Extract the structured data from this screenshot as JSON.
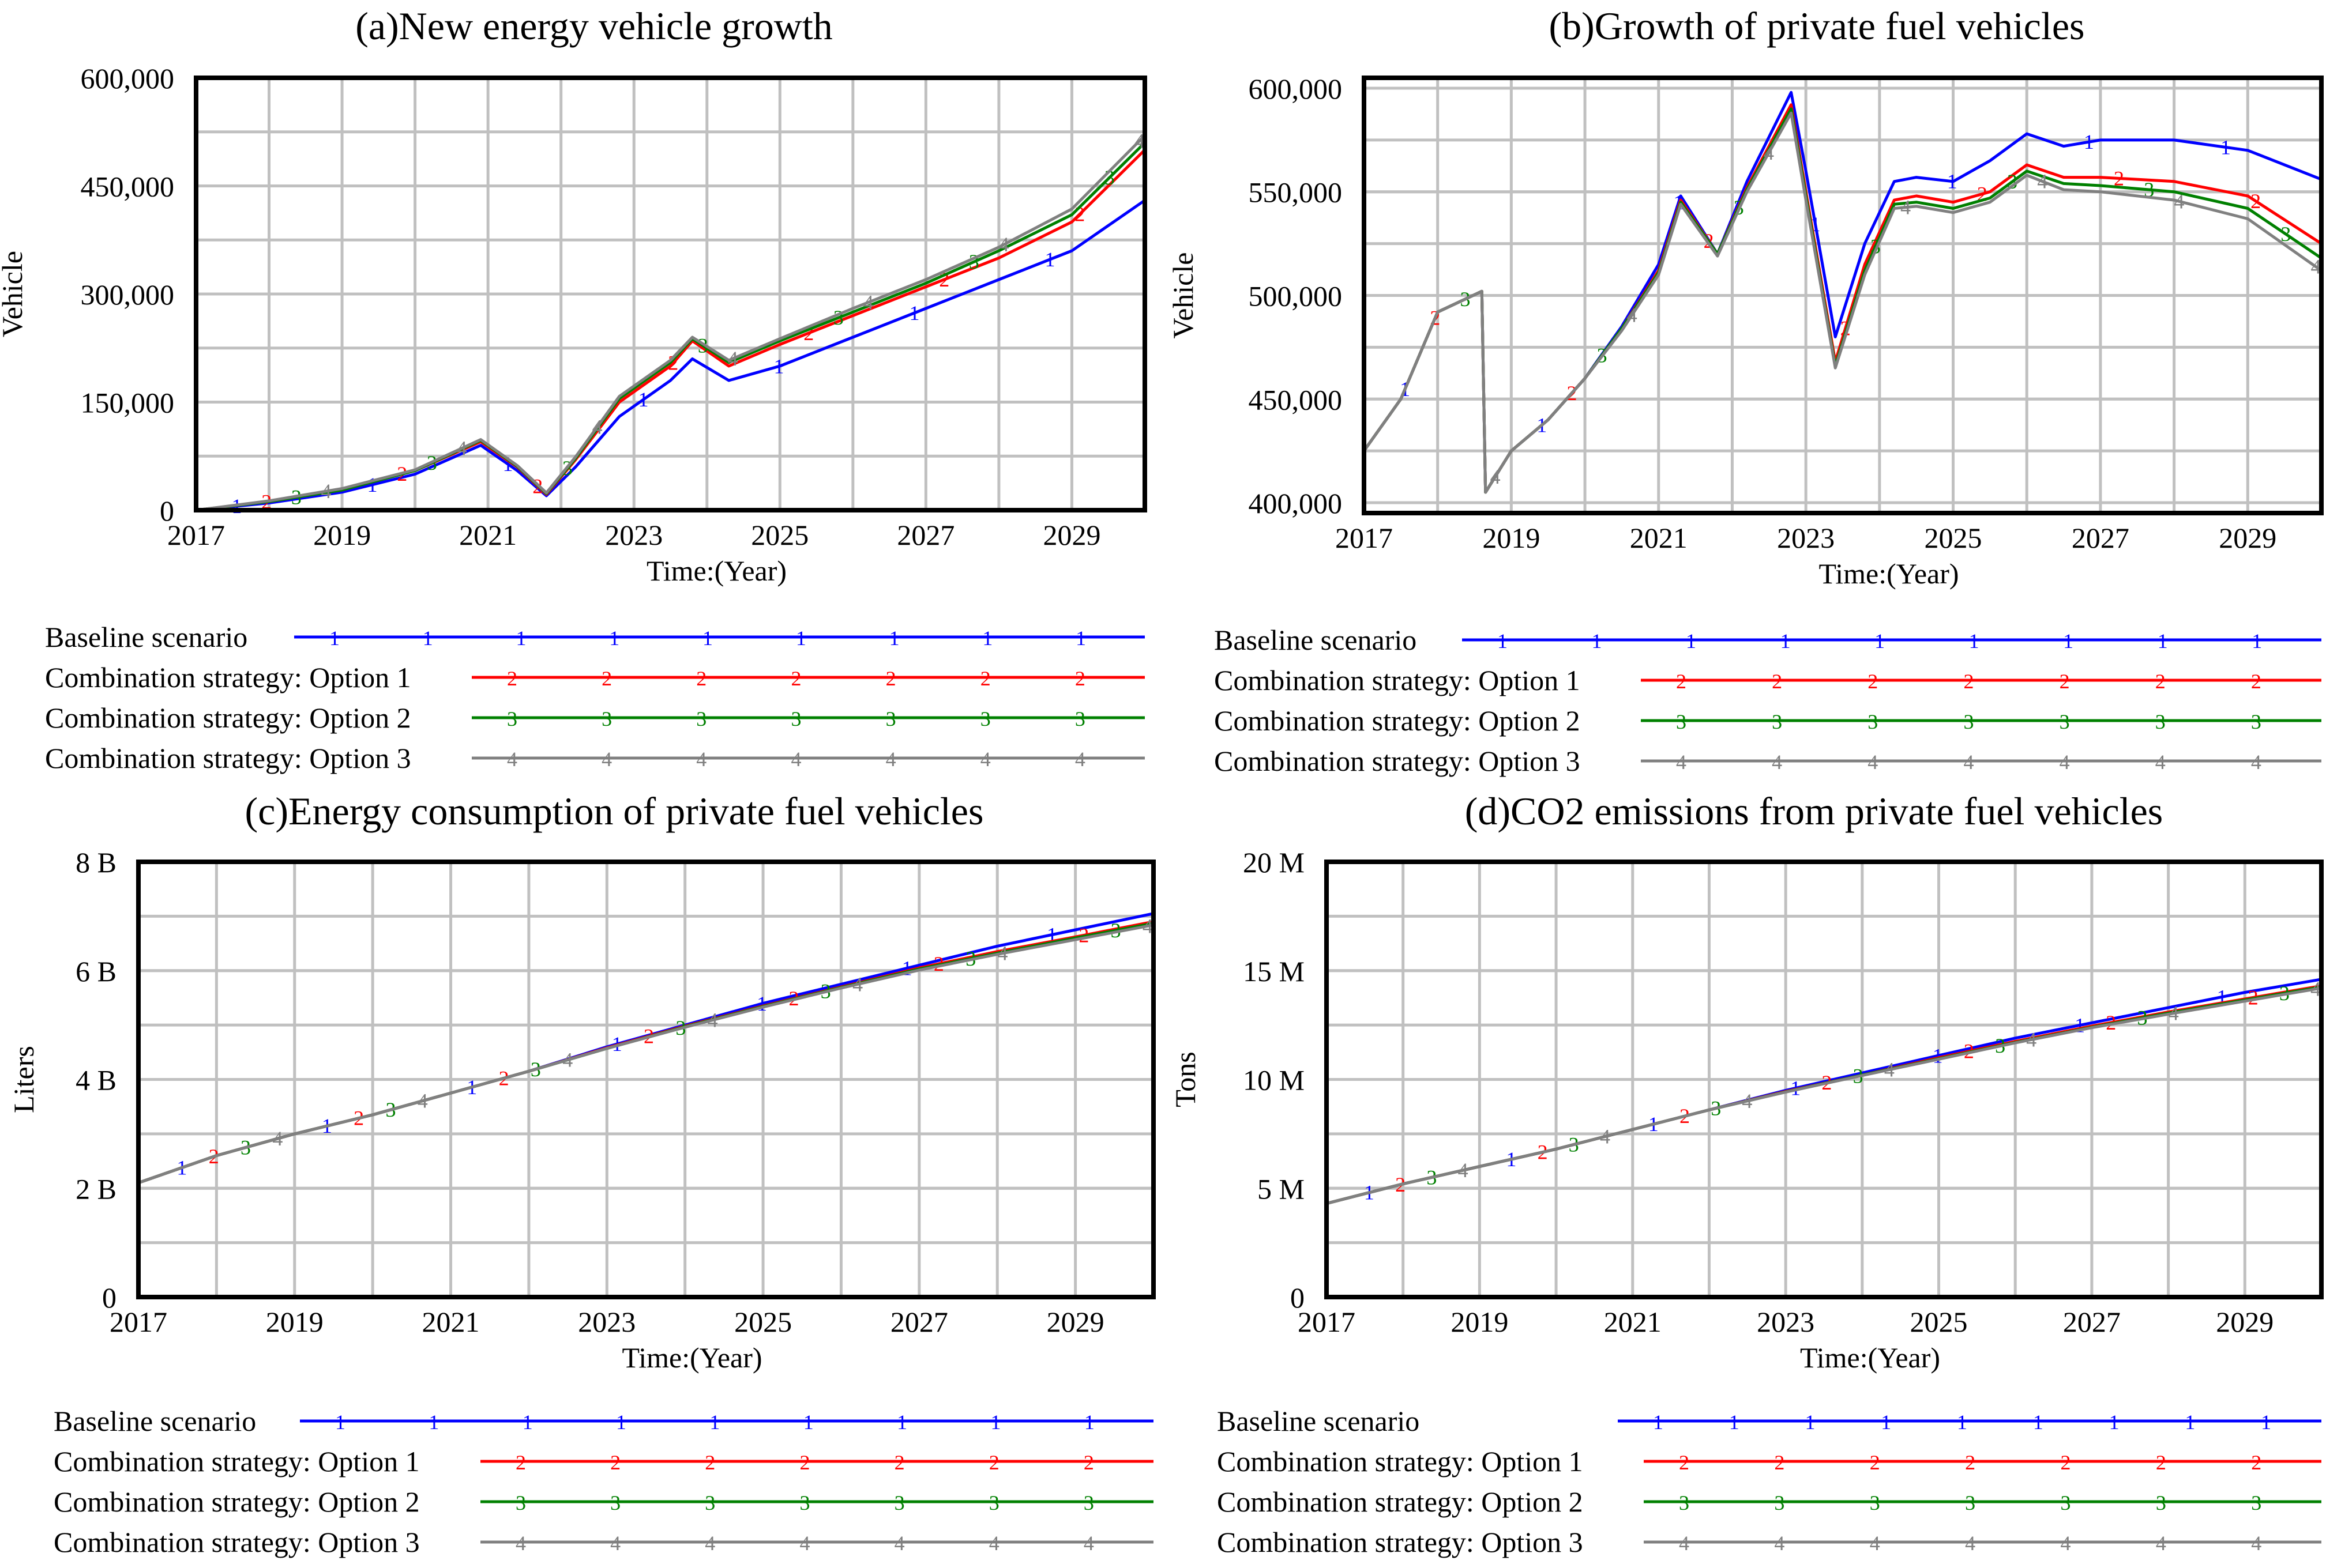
{
  "series_meta": [
    {
      "name": "Baseline scenario",
      "marker": "1",
      "color": "#0000ff"
    },
    {
      "name": "Combination strategy: Option 1",
      "marker": "2",
      "color": "#ff0000"
    },
    {
      "name": "Combination strategy: Option 2",
      "marker": "3",
      "color": "#008000"
    },
    {
      "name": "Combination strategy: Option 3",
      "marker": "4",
      "color": "#808080"
    }
  ],
  "chart_data": [
    {
      "type": "line",
      "title": "(a)New energy vehicle growth",
      "xlabel": "Time:(Year)",
      "ylabel": "Vehicle",
      "xlim": [
        2017,
        2030
      ],
      "ylim": [
        0,
        600000
      ],
      "xticks": [
        2017,
        2019,
        2021,
        2023,
        2025,
        2027,
        2029
      ],
      "yticks": [
        {
          "v": 0,
          "label": "0"
        },
        {
          "v": 150000,
          "label": "150,000"
        },
        {
          "v": 300000,
          "label": "300,000"
        },
        {
          "v": 450000,
          "label": "450,000"
        },
        {
          "v": 600000,
          "label": "600,000"
        }
      ],
      "series": [
        {
          "name": "Baseline scenario",
          "x": [
            2017,
            2018,
            2019,
            2020,
            2020.9,
            2021.4,
            2021.8,
            2022.2,
            2022.8,
            2023.5,
            2023.8,
            2024.3,
            2025,
            2026,
            2027,
            2028,
            2029,
            2030
          ],
          "values": [
            0,
            10000,
            25000,
            50000,
            90000,
            55000,
            20000,
            60000,
            130000,
            180000,
            210000,
            180000,
            200000,
            240000,
            280000,
            320000,
            360000,
            430000
          ]
        },
        {
          "name": "Combination strategy: Option 1",
          "x": [
            2017,
            2018,
            2019,
            2020,
            2020.9,
            2021.4,
            2021.8,
            2022.2,
            2022.8,
            2023.5,
            2023.8,
            2024.3,
            2025,
            2026,
            2027,
            2028,
            2029,
            2030
          ],
          "values": [
            0,
            12000,
            28000,
            55000,
            95000,
            60000,
            22000,
            70000,
            150000,
            200000,
            235000,
            200000,
            230000,
            270000,
            310000,
            350000,
            400000,
            500000
          ]
        },
        {
          "name": "Combination strategy: Option 2",
          "x": [
            2017,
            2018,
            2019,
            2020,
            2020.9,
            2021.4,
            2021.8,
            2022.2,
            2022.8,
            2023.5,
            2023.8,
            2024.3,
            2025,
            2026,
            2027,
            2028,
            2029,
            2030
          ],
          "values": [
            0,
            12000,
            28000,
            55000,
            97000,
            61000,
            23000,
            72000,
            155000,
            205000,
            238000,
            205000,
            235000,
            275000,
            315000,
            360000,
            410000,
            510000
          ]
        },
        {
          "name": "Combination strategy: Option 3",
          "x": [
            2017,
            2018,
            2019,
            2020,
            2020.9,
            2021.4,
            2021.8,
            2022.2,
            2022.8,
            2023.5,
            2023.8,
            2024.3,
            2025,
            2026,
            2027,
            2028,
            2029,
            2030
          ],
          "values": [
            0,
            13000,
            30000,
            56000,
            98000,
            62000,
            24000,
            74000,
            158000,
            208000,
            240000,
            208000,
            238000,
            280000,
            320000,
            365000,
            418000,
            520000
          ]
        }
      ]
    },
    {
      "type": "line",
      "title": "(b)Growth of private fuel vehicles",
      "xlabel": "Time:(Year)",
      "ylabel": "Vehicle",
      "xlim": [
        2017,
        2030
      ],
      "ylim": [
        395000,
        605000
      ],
      "xticks": [
        2017,
        2019,
        2021,
        2023,
        2025,
        2027,
        2029
      ],
      "yticks": [
        {
          "v": 400000,
          "label": "400,000"
        },
        {
          "v": 450000,
          "label": "450,000"
        },
        {
          "v": 500000,
          "label": "500,000"
        },
        {
          "v": 550000,
          "label": "550,000"
        },
        {
          "v": 600000,
          "label": "600,000"
        }
      ],
      "series": [
        {
          "name": "Baseline scenario",
          "x": [
            2017,
            2017.5,
            2018,
            2018.6,
            2018.65,
            2019,
            2019.5,
            2020,
            2020.5,
            2021,
            2021.3,
            2021.8,
            2022.2,
            2022.8,
            2023,
            2023.4,
            2023.8,
            2024.2,
            2024.5,
            2025,
            2025.5,
            2026,
            2026.5,
            2027,
            2028,
            2029,
            2030
          ],
          "values": [
            425000,
            450000,
            492000,
            502000,
            405000,
            425000,
            440000,
            460000,
            485000,
            515000,
            548000,
            520000,
            555000,
            598000,
            560000,
            480000,
            525000,
            555000,
            557000,
            555000,
            565000,
            578000,
            572000,
            575000,
            575000,
            570000,
            556000
          ]
        },
        {
          "name": "Combination strategy: Option 1",
          "x": [
            2017,
            2017.5,
            2018,
            2018.6,
            2018.65,
            2019,
            2019.5,
            2020,
            2020.5,
            2021,
            2021.3,
            2021.8,
            2022.2,
            2022.8,
            2023,
            2023.4,
            2023.8,
            2024.2,
            2024.5,
            2025,
            2025.5,
            2026,
            2026.5,
            2027,
            2028,
            2029,
            2030
          ],
          "values": [
            425000,
            450000,
            492000,
            502000,
            405000,
            425000,
            440000,
            460000,
            484000,
            512000,
            546000,
            520000,
            552000,
            592000,
            550000,
            468000,
            515000,
            546000,
            548000,
            545000,
            550000,
            563000,
            557000,
            557000,
            555000,
            548000,
            525000
          ]
        },
        {
          "name": "Combination strategy: Option 2",
          "x": [
            2017,
            2017.5,
            2018,
            2018.6,
            2018.65,
            2019,
            2019.5,
            2020,
            2020.5,
            2021,
            2021.3,
            2021.8,
            2022.2,
            2022.8,
            2023,
            2023.4,
            2023.8,
            2024.2,
            2024.5,
            2025,
            2025.5,
            2026,
            2026.5,
            2027,
            2028,
            2029,
            2030
          ],
          "values": [
            425000,
            450000,
            492000,
            502000,
            405000,
            425000,
            440000,
            460000,
            484000,
            511000,
            545000,
            520000,
            551000,
            590000,
            548000,
            466000,
            512000,
            544000,
            545000,
            542000,
            547000,
            560000,
            554000,
            553000,
            550000,
            542000,
            518000
          ]
        },
        {
          "name": "Combination strategy: Option 3",
          "x": [
            2017,
            2017.5,
            2018,
            2018.6,
            2018.65,
            2019,
            2019.5,
            2020,
            2020.5,
            2021,
            2021.3,
            2021.8,
            2022.2,
            2022.8,
            2023,
            2023.4,
            2023.8,
            2024.2,
            2024.5,
            2025,
            2025.5,
            2026,
            2026.5,
            2027,
            2028,
            2029,
            2030
          ],
          "values": [
            425000,
            450000,
            492000,
            502000,
            405000,
            425000,
            440000,
            460000,
            483000,
            510000,
            544000,
            519000,
            550000,
            588000,
            546000,
            465000,
            510000,
            542000,
            543000,
            540000,
            545000,
            558000,
            551000,
            550000,
            546000,
            537000,
            512000
          ]
        }
      ]
    },
    {
      "type": "line",
      "title": "(c)Energy consumption of private fuel vehicles",
      "xlabel": "Time:(Year)",
      "ylabel": "Liters",
      "xlim": [
        2017,
        2030
      ],
      "ylim": [
        0,
        8
      ],
      "xticks": [
        2017,
        2019,
        2021,
        2023,
        2025,
        2027,
        2029
      ],
      "yticks": [
        {
          "v": 0,
          "label": "0"
        },
        {
          "v": 2,
          "label": "2 B"
        },
        {
          "v": 4,
          "label": "4 B"
        },
        {
          "v": 6,
          "label": "6 B"
        },
        {
          "v": 8,
          "label": "8 B"
        }
      ],
      "series": [
        {
          "name": "Baseline scenario",
          "x": [
            2017,
            2018,
            2019,
            2020,
            2021,
            2022,
            2023,
            2024,
            2025,
            2026,
            2027,
            2028,
            2029,
            2030
          ],
          "values": [
            2.1,
            2.6,
            3.0,
            3.35,
            3.75,
            4.15,
            4.6,
            5.0,
            5.4,
            5.75,
            6.1,
            6.45,
            6.75,
            7.05
          ]
        },
        {
          "name": "Combination strategy: Option 1",
          "x": [
            2017,
            2018,
            2019,
            2020,
            2021,
            2022,
            2023,
            2024,
            2025,
            2026,
            2027,
            2028,
            2029,
            2030
          ],
          "values": [
            2.1,
            2.6,
            3.0,
            3.35,
            3.75,
            4.15,
            4.58,
            4.98,
            5.35,
            5.7,
            6.05,
            6.35,
            6.62,
            6.9
          ]
        },
        {
          "name": "Combination strategy: Option 2",
          "x": [
            2017,
            2018,
            2019,
            2020,
            2021,
            2022,
            2023,
            2024,
            2025,
            2026,
            2027,
            2028,
            2029,
            2030
          ],
          "values": [
            2.1,
            2.6,
            3.0,
            3.35,
            3.75,
            4.15,
            4.57,
            4.97,
            5.34,
            5.69,
            6.03,
            6.32,
            6.6,
            6.87
          ]
        },
        {
          "name": "Combination strategy: Option 3",
          "x": [
            2017,
            2018,
            2019,
            2020,
            2021,
            2022,
            2023,
            2024,
            2025,
            2026,
            2027,
            2028,
            2029,
            2030
          ],
          "values": [
            2.1,
            2.6,
            3.0,
            3.35,
            3.75,
            4.15,
            4.57,
            4.96,
            5.33,
            5.68,
            6.01,
            6.3,
            6.57,
            6.84
          ]
        }
      ]
    },
    {
      "type": "line",
      "title": "(d)CO2 emissions from private fuel vehicles",
      "xlabel": "Time:(Year)",
      "ylabel": "Tons",
      "xlim": [
        2017,
        2030
      ],
      "ylim": [
        0,
        20
      ],
      "xticks": [
        2017,
        2019,
        2021,
        2023,
        2025,
        2027,
        2029
      ],
      "yticks": [
        {
          "v": 0,
          "label": "0"
        },
        {
          "v": 5,
          "label": "5 M"
        },
        {
          "v": 10,
          "label": "10 M"
        },
        {
          "v": 15,
          "label": "15 M"
        },
        {
          "v": 20,
          "label": "20 M"
        }
      ],
      "series": [
        {
          "name": "Baseline scenario",
          "x": [
            2017,
            2018,
            2019,
            2020,
            2021,
            2022,
            2023,
            2024,
            2025,
            2026,
            2027,
            2028,
            2029,
            2030
          ],
          "values": [
            4.3,
            5.2,
            6.0,
            6.8,
            7.7,
            8.6,
            9.5,
            10.3,
            11.1,
            11.9,
            12.6,
            13.3,
            14.0,
            14.6
          ]
        },
        {
          "name": "Combination strategy: Option 1",
          "x": [
            2017,
            2018,
            2019,
            2020,
            2021,
            2022,
            2023,
            2024,
            2025,
            2026,
            2027,
            2028,
            2029,
            2030
          ],
          "values": [
            4.3,
            5.2,
            6.0,
            6.8,
            7.7,
            8.6,
            9.45,
            10.2,
            11.0,
            11.75,
            12.45,
            13.1,
            13.7,
            14.3
          ]
        },
        {
          "name": "Combination strategy: Option 2",
          "x": [
            2017,
            2018,
            2019,
            2020,
            2021,
            2022,
            2023,
            2024,
            2025,
            2026,
            2027,
            2028,
            2029,
            2030
          ],
          "values": [
            4.3,
            5.2,
            6.0,
            6.8,
            7.7,
            8.6,
            9.43,
            10.2,
            10.95,
            11.7,
            12.4,
            13.05,
            13.65,
            14.25
          ]
        },
        {
          "name": "Combination strategy: Option 3",
          "x": [
            2017,
            2018,
            2019,
            2020,
            2021,
            2022,
            2023,
            2024,
            2025,
            2026,
            2027,
            2028,
            2029,
            2030
          ],
          "values": [
            4.3,
            5.2,
            6.0,
            6.8,
            7.7,
            8.6,
            9.42,
            10.18,
            10.93,
            11.68,
            12.38,
            13.0,
            13.6,
            14.2
          ]
        }
      ]
    }
  ]
}
